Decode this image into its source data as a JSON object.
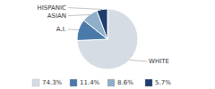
{
  "chart_data": {
    "type": "pie",
    "categories": [
      "WHITE",
      "A.I.",
      "ASIAN",
      "HISPANIC"
    ],
    "values": [
      74.3,
      11.4,
      8.6,
      5.7
    ],
    "value_labels": [
      "74.3%",
      "11.4%",
      "8.6%",
      "5.7%"
    ],
    "colors": [
      "#d6dce4",
      "#4a7aaa",
      "#8fafc8",
      "#1f3d6e"
    ],
    "legend": "bottom"
  }
}
